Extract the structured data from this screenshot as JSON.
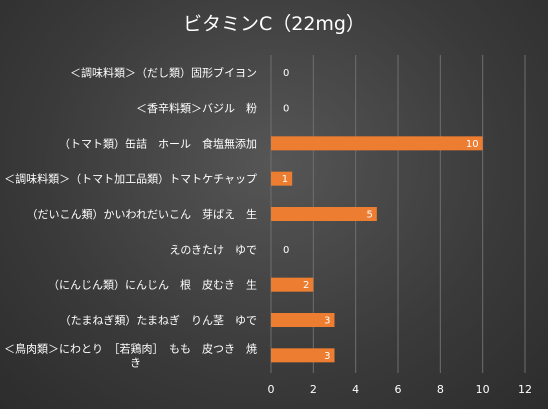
{
  "chart_data": {
    "type": "bar",
    "orientation": "horizontal",
    "title": "ビタミンC（22mg）",
    "categories": [
      "＜調味料類＞（だし類）固形ブイヨン",
      "＜香辛料類＞バジル　粉",
      "（トマト類）缶詰　ホール　食塩無添加",
      "＜調味料類＞（トマト加工品類）トマトケチャップ",
      "（だいこん類）かいわれだいこん　芽ばえ　生",
      "えのきたけ　ゆで",
      "（にんじん類）にんじん　根　皮むき　生",
      "（たまねぎ類）たまねぎ　りん茎　ゆで",
      "＜鳥肉類＞にわとり　［若鶏肉］　もも　皮つき　焼き"
    ],
    "values": [
      0,
      0,
      10,
      1,
      5,
      0,
      2,
      3,
      3
    ],
    "xlim": [
      0,
      12
    ],
    "xticks": [
      0,
      2,
      4,
      6,
      8,
      10,
      12
    ],
    "grid": true,
    "bar_color": "#ED7D31"
  }
}
